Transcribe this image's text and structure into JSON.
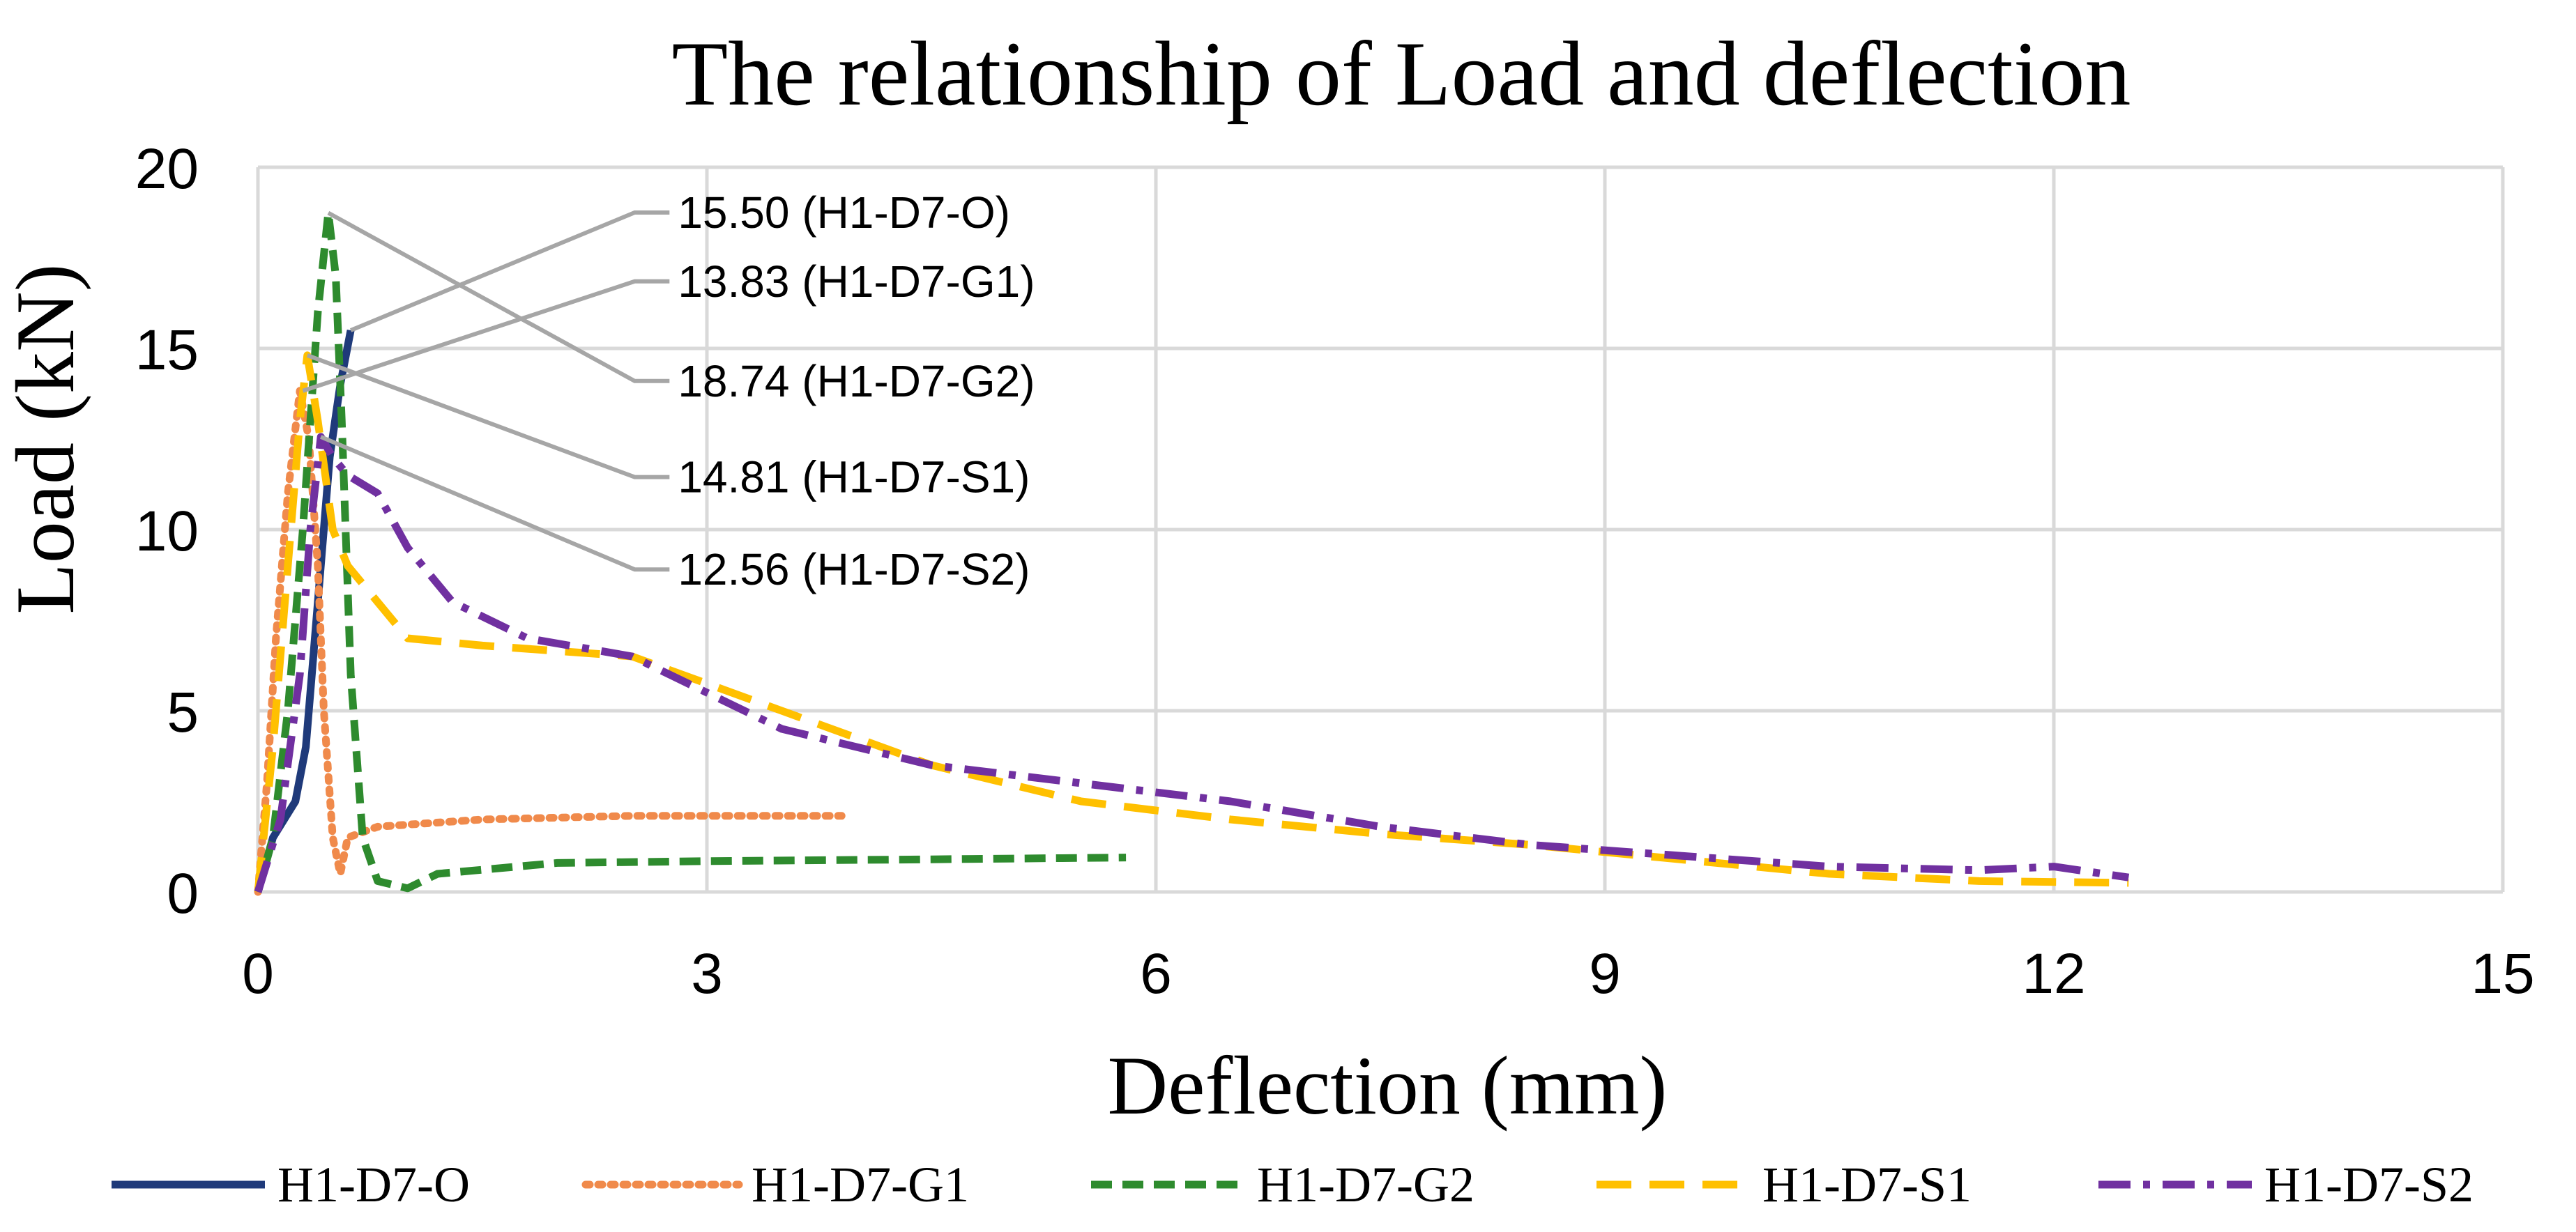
{
  "chart_data": {
    "type": "line",
    "title": "The relationship of Load and deflection",
    "xlabel": "Deflection (mm)",
    "ylabel": "Load (kN)",
    "xlim": [
      0,
      15
    ],
    "ylim": [
      0,
      20
    ],
    "x_ticks": [
      0,
      3,
      6,
      9,
      12,
      15
    ],
    "y_ticks": [
      0,
      5,
      10,
      15,
      20
    ],
    "x_tick_labels": [
      "0",
      "3",
      "6",
      "9",
      "12",
      "15"
    ],
    "y_tick_labels": [
      "0",
      "5",
      "10",
      "15",
      "20"
    ],
    "grid": true,
    "legend_position": "bottom",
    "series": [
      {
        "name": "H1-D7-O",
        "color": "#1f3a7a",
        "style": "solid",
        "x": [
          0,
          0.1,
          0.25,
          0.32,
          0.4,
          0.48,
          0.55,
          0.62
        ],
        "y": [
          0,
          1.5,
          2.5,
          4,
          8,
          12,
          14,
          15.5
        ]
      },
      {
        "name": "H1-D7-G1",
        "color": "#f08a4b",
        "style": "dotted",
        "x": [
          0,
          0.06,
          0.12,
          0.2,
          0.28,
          0.34,
          0.4,
          0.44,
          0.5,
          0.55,
          0.6,
          0.8,
          1.5,
          2.5,
          3.9
        ],
        "y": [
          0,
          3,
          7,
          11,
          13.83,
          12.5,
          9,
          5,
          1.5,
          0.5,
          1.5,
          1.8,
          2.0,
          2.1,
          2.1
        ]
      },
      {
        "name": "H1-D7-G2",
        "color": "#2e8b2e",
        "style": "dashed",
        "x": [
          0,
          0.1,
          0.2,
          0.3,
          0.4,
          0.47,
          0.52,
          0.56,
          0.62,
          0.7,
          0.8,
          1.0,
          1.2,
          2.0,
          3.0,
          4.5,
          5.8
        ],
        "y": [
          0,
          1.5,
          5,
          10,
          16,
          18.74,
          17,
          13,
          6,
          1.5,
          0.3,
          0.1,
          0.5,
          0.8,
          0.85,
          0.9,
          0.95
        ]
      },
      {
        "name": "H1-D7-S1",
        "color": "#ffc000",
        "style": "long-dash",
        "x": [
          0,
          0.1,
          0.2,
          0.28,
          0.33,
          0.4,
          0.5,
          0.6,
          0.8,
          1.0,
          1.5,
          2.5,
          3.5,
          4.5,
          5.5,
          6.5,
          7.5,
          8.5,
          9.5,
          10.5,
          11.5,
          12.5
        ],
        "y": [
          0,
          4,
          9,
          13,
          14.81,
          13,
          10,
          9,
          8,
          7,
          6.8,
          6.5,
          5,
          3.5,
          2.5,
          2.0,
          1.6,
          1.3,
          0.9,
          0.5,
          0.3,
          0.25
        ]
      },
      {
        "name": "H1-D7-S2",
        "color": "#7030a0",
        "style": "dash-dot",
        "x": [
          0,
          0.15,
          0.28,
          0.35,
          0.42,
          0.5,
          0.6,
          0.8,
          1.0,
          1.3,
          1.8,
          2.5,
          3.5,
          4.5,
          5.5,
          6.5,
          7.5,
          8.5,
          9.5,
          10.5,
          11.5,
          12.0,
          12.5
        ],
        "y": [
          0,
          2,
          6,
          10,
          12.56,
          12,
          11.5,
          11,
          9.5,
          8,
          7,
          6.5,
          4.5,
          3.5,
          3.0,
          2.5,
          1.8,
          1.3,
          1.0,
          0.7,
          0.6,
          0.7,
          0.4
        ]
      }
    ],
    "annotations": [
      {
        "text": "15.50 (H1-D7-O)",
        "point": [
          0.62,
          15.5
        ],
        "label_anchor": [
          2.75,
          18.75
        ]
      },
      {
        "text": "13.83 (H1-D7-G1)",
        "point": [
          0.3,
          13.83
        ],
        "label_anchor": [
          2.75,
          16.85
        ]
      },
      {
        "text": "18.74 (H1-D7-G2)",
        "point": [
          0.47,
          18.74
        ],
        "label_anchor": [
          2.75,
          14.1
        ]
      },
      {
        "text": "14.81 (H1-D7-S1)",
        "point": [
          0.33,
          14.81
        ],
        "label_anchor": [
          2.75,
          11.45
        ]
      },
      {
        "text": "12.56 (H1-D7-S2)",
        "point": [
          0.42,
          12.56
        ],
        "label_anchor": [
          2.75,
          8.9
        ]
      }
    ]
  }
}
